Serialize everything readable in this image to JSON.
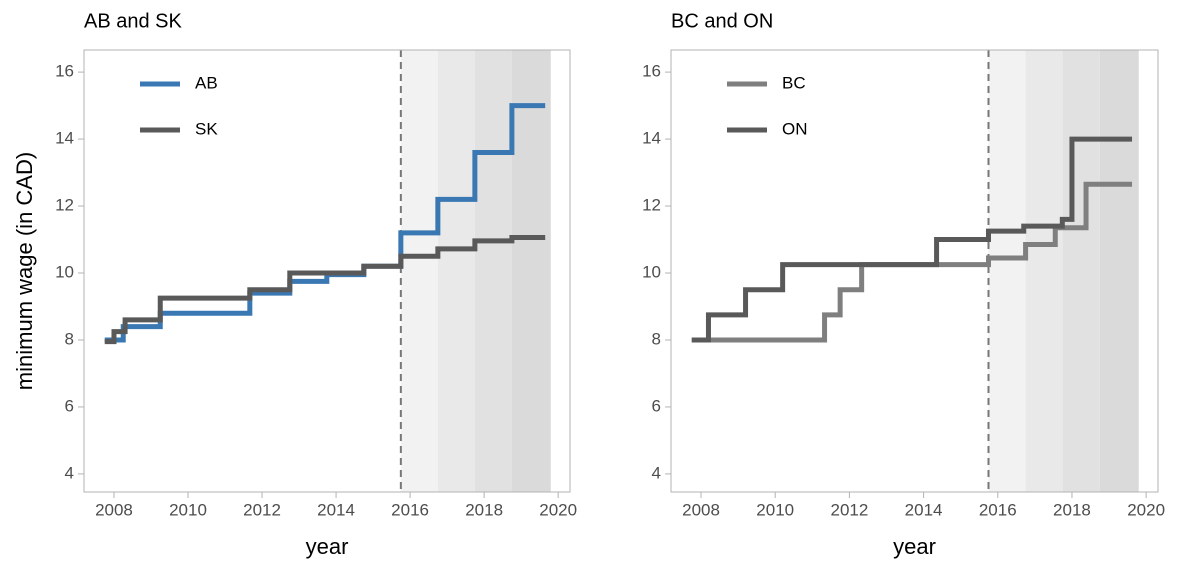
{
  "chart_data": [
    {
      "type": "line",
      "step": "post",
      "title": "AB and SK",
      "xlabel": "year",
      "ylabel": "minimum wage (in CAD)",
      "xlim": [
        2007.19,
        2020.32
      ],
      "ylim": [
        3.46,
        16.66
      ],
      "xticks": [
        2008,
        2010,
        2012,
        2014,
        2016,
        2018,
        2020
      ],
      "yticks": [
        4,
        6,
        8,
        10,
        12,
        14,
        16
      ],
      "vline": 2015.75,
      "legend": "top-left",
      "shading": [
        {
          "start": 2015.75,
          "end": 2016.75,
          "color": "#f2f2f2"
        },
        {
          "start": 2016.75,
          "end": 2017.75,
          "color": "#e9e9e9"
        },
        {
          "start": 2017.75,
          "end": 2018.75,
          "color": "#e1e1e1"
        },
        {
          "start": 2018.75,
          "end": 2019.8,
          "color": "#dadada"
        }
      ],
      "series": [
        {
          "name": "AB",
          "color": "#3a78b3",
          "x": [
            2007.75,
            2008.25,
            2009.25,
            2011.67,
            2012.75,
            2013.75,
            2014.75,
            2015.75,
            2016.75,
            2017.75,
            2018.75,
            2019.65
          ],
          "values": [
            8.0,
            8.4,
            8.8,
            9.4,
            9.75,
            9.95,
            10.2,
            11.2,
            12.2,
            13.6,
            15.0,
            15.0
          ]
        },
        {
          "name": "SK",
          "color": "#595959",
          "x": [
            2007.75,
            2008.0,
            2008.3,
            2009.25,
            2011.67,
            2012.75,
            2014.75,
            2015.75,
            2016.75,
            2017.75,
            2018.75,
            2019.65
          ],
          "values": [
            7.95,
            8.25,
            8.6,
            9.25,
            9.5,
            10.0,
            10.2,
            10.5,
            10.72,
            10.96,
            11.06,
            11.06
          ]
        }
      ]
    },
    {
      "type": "line",
      "step": "post",
      "title": "BC and ON",
      "xlabel": "year",
      "xlim": [
        2007.19,
        2020.32
      ],
      "ylim": [
        3.46,
        16.66
      ],
      "xticks": [
        2008,
        2010,
        2012,
        2014,
        2016,
        2018,
        2020
      ],
      "yticks": [
        4,
        6,
        8,
        10,
        12,
        14,
        16
      ],
      "vline": 2015.75,
      "legend": "top-left",
      "shading": [
        {
          "start": 2015.75,
          "end": 2016.75,
          "color": "#f2f2f2"
        },
        {
          "start": 2016.75,
          "end": 2017.75,
          "color": "#e9e9e9"
        },
        {
          "start": 2017.75,
          "end": 2018.75,
          "color": "#e1e1e1"
        },
        {
          "start": 2018.75,
          "end": 2019.8,
          "color": "#dadada"
        }
      ],
      "series": [
        {
          "name": "BC",
          "color": "#7f7f7f",
          "x": [
            2007.75,
            2011.33,
            2011.75,
            2012.33,
            2015.75,
            2016.75,
            2017.55,
            2018.38,
            2019.62
          ],
          "values": [
            8.0,
            8.75,
            9.5,
            10.25,
            10.45,
            10.85,
            11.35,
            12.65,
            12.65
          ]
        },
        {
          "name": "ON",
          "color": "#595959",
          "x": [
            2007.75,
            2008.2,
            2009.2,
            2010.2,
            2014.35,
            2015.75,
            2016.7,
            2017.74,
            2018.0,
            2019.62
          ],
          "values": [
            8.0,
            8.75,
            9.5,
            10.25,
            11.0,
            11.25,
            11.4,
            11.6,
            14.0,
            14.0
          ]
        }
      ]
    }
  ]
}
